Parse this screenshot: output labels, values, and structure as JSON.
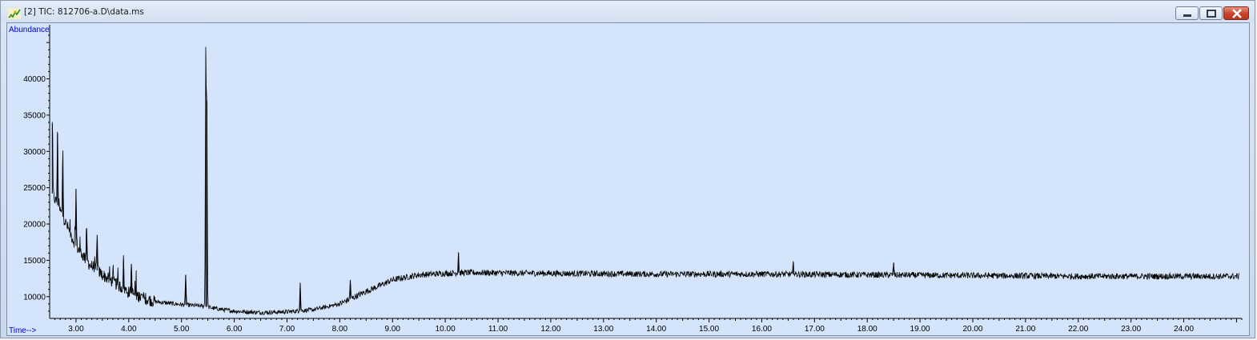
{
  "window": {
    "title": "[2] TIC: 812706-a.D\\data.ms",
    "icon": "chromatogram-icon",
    "controls": [
      "minimize-icon",
      "restore-icon",
      "close-icon"
    ]
  },
  "chart_data": {
    "type": "line",
    "ylabel": "Abundance",
    "xlabel": "Time-->",
    "xlim": [
      2.5,
      25.1
    ],
    "ylim": [
      7000,
      47000
    ],
    "x_ticks": [
      "3.00",
      "4.00",
      "5.00",
      "6.00",
      "7.00",
      "8.00",
      "9.00",
      "10.00",
      "11.00",
      "12.00",
      "13.00",
      "14.00",
      "15.00",
      "16.00",
      "17.00",
      "18.00",
      "19.00",
      "20.00",
      "21.00",
      "22.00",
      "23.00",
      "24.00"
    ],
    "y_ticks": [
      "10000",
      "15000",
      "20000",
      "25000",
      "30000",
      "35000",
      "40000"
    ],
    "series": [
      {
        "color": "#000000",
        "baseline": {
          "x": [
            2.5,
            2.75,
            3.0,
            3.25,
            3.5,
            3.75,
            4.0,
            4.25,
            4.5,
            5.0,
            5.4,
            5.6,
            6.0,
            6.5,
            7.0,
            7.5,
            8.0,
            8.5,
            9.0,
            9.5,
            10.0,
            10.5,
            12.0,
            14.0,
            16.0,
            18.0,
            20.0,
            22.0,
            24.0,
            25.0
          ],
          "y": [
            25000,
            21000,
            17000,
            14500,
            13000,
            11800,
            10600,
            9900,
            9300,
            8900,
            8700,
            8400,
            8000,
            7800,
            7900,
            8200,
            9000,
            10700,
            12300,
            13000,
            13200,
            13300,
            13200,
            13100,
            13100,
            13000,
            12900,
            12800,
            12800,
            12800
          ]
        },
        "peaks": [
          {
            "x": 2.55,
            "y": 33800
          },
          {
            "x": 2.65,
            "y": 32500
          },
          {
            "x": 2.75,
            "y": 29500
          },
          {
            "x": 3.0,
            "y": 24800
          },
          {
            "x": 3.2,
            "y": 19200
          },
          {
            "x": 3.4,
            "y": 18500
          },
          {
            "x": 3.9,
            "y": 15000
          },
          {
            "x": 4.05,
            "y": 14500
          },
          {
            "x": 5.08,
            "y": 13000
          },
          {
            "x": 5.46,
            "y": 43200
          },
          {
            "x": 5.48,
            "y": 37000
          },
          {
            "x": 7.25,
            "y": 11900
          },
          {
            "x": 8.2,
            "y": 12300
          },
          {
            "x": 10.25,
            "y": 16100
          },
          {
            "x": 16.6,
            "y": 14700
          },
          {
            "x": 18.5,
            "y": 14600
          }
        ]
      }
    ]
  }
}
